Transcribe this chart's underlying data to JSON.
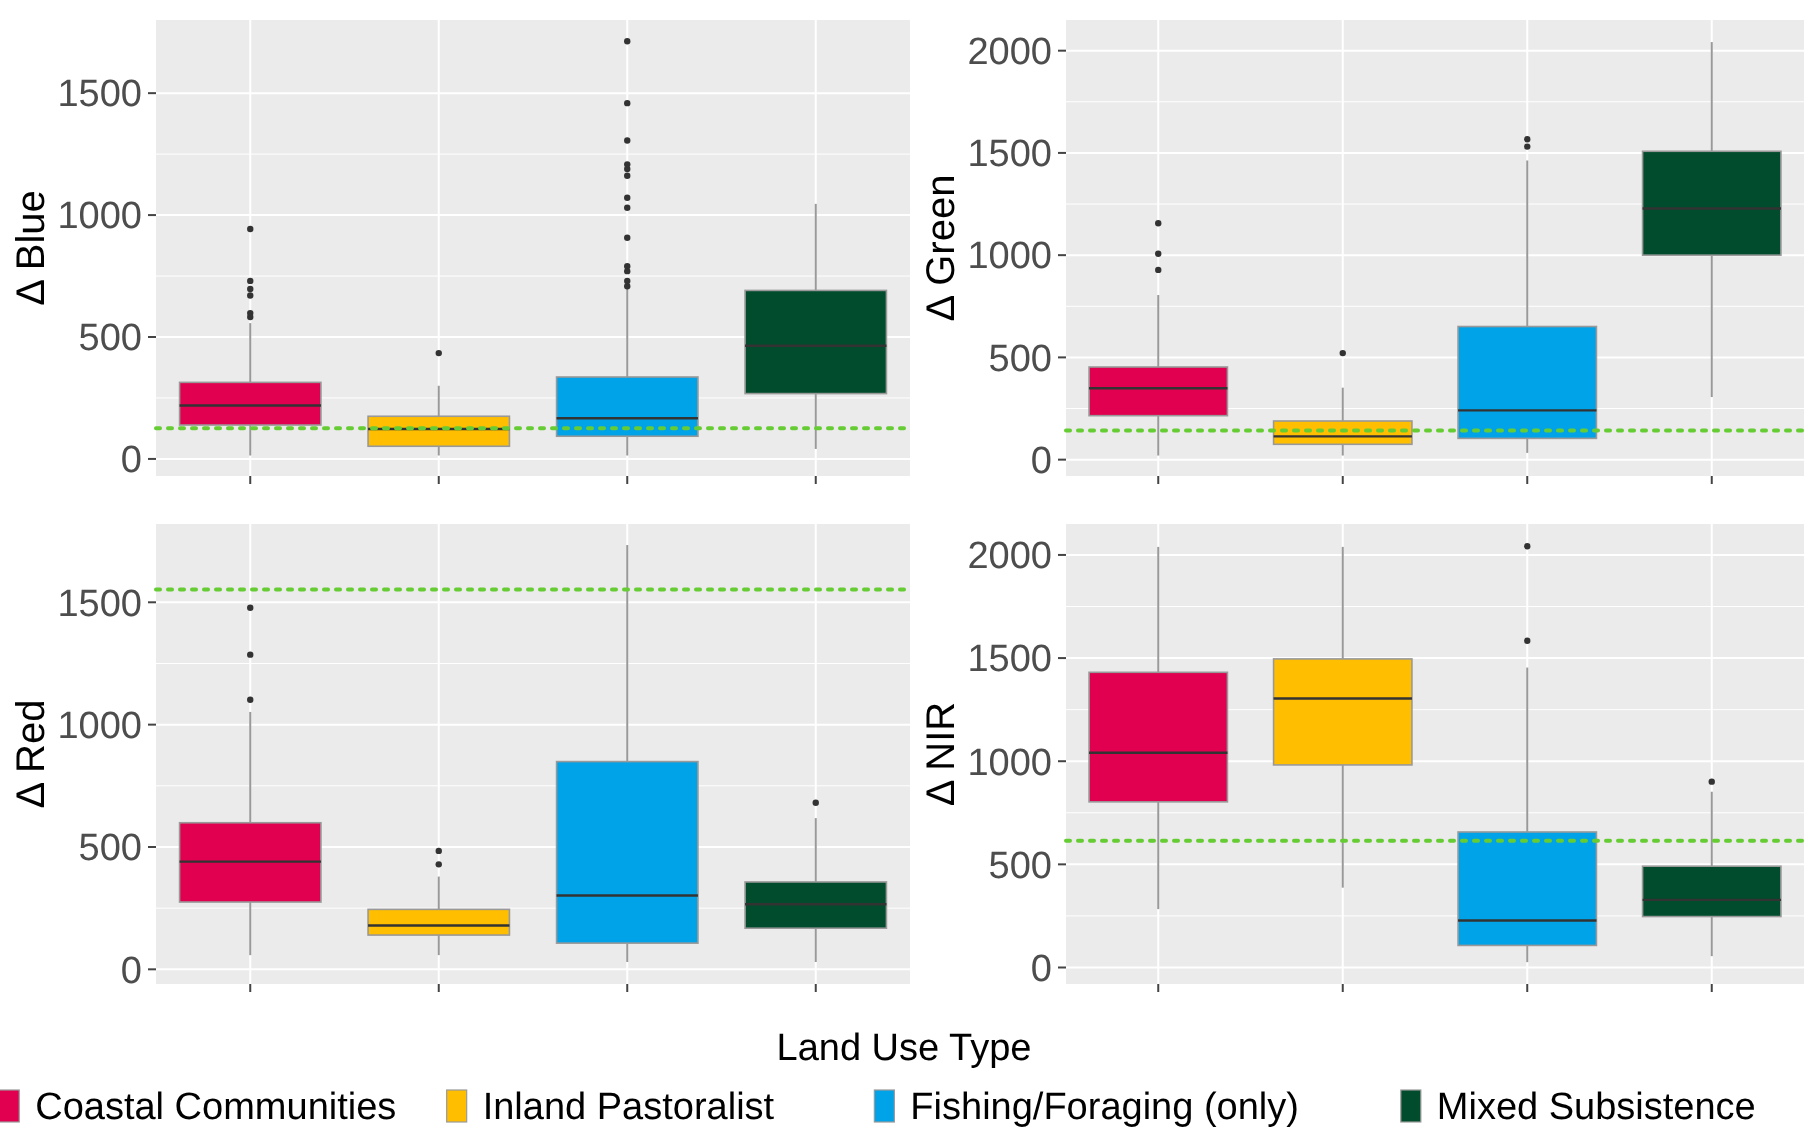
{
  "chart_data": [
    {
      "type": "box",
      "ylabel": "Δ Blue",
      "categories": [
        null,
        null,
        null,
        null
      ],
      "ylim": [
        -70,
        1800
      ],
      "yticks": [
        0,
        500,
        1000,
        1500
      ],
      "grid": true,
      "tick_labels": "y",
      "ref_lines": [
        {
          "axis": "y",
          "value": 126,
          "color": "#66cc33",
          "line_style": "dotted"
        }
      ],
      "series": [
        {
          "color": "#e0004f",
          "boxes": [
            {
              "low": 14,
              "q1": 139,
              "median": 219,
              "q3": 314,
              "high": 557,
              "outliers": [
                943,
                730,
                697,
                670,
                598,
                582
              ]
            },
            null,
            null,
            null
          ]
        },
        {
          "color": "#ffbe00",
          "boxes": [
            null,
            {
              "low": 14,
              "q1": 52,
              "median": 123,
              "q3": 175,
              "high": 300,
              "outliers": [
                434
              ]
            },
            null,
            null
          ]
        },
        {
          "color": "#00a2e8",
          "boxes": [
            null,
            null,
            {
              "low": 14,
              "q1": 93,
              "median": 167,
              "q3": 336,
              "high": 697,
              "outliers": [
                1713,
                1459,
                1306,
                1208,
                1189,
                1161,
                1071,
                1030,
                907,
                790,
                770,
                730,
                708
              ]
            },
            null
          ]
        },
        {
          "color": "#004c2c",
          "boxes": [
            null,
            null,
            null,
            {
              "low": 41,
              "q1": 268,
              "median": 464,
              "q3": 691,
              "high": 1046
            }
          ]
        }
      ]
    },
    {
      "type": "box",
      "ylabel": "Δ Green",
      "categories": [
        null,
        null,
        null,
        null
      ],
      "ylim": [
        -80,
        2150
      ],
      "yticks": [
        0,
        500,
        1000,
        1500,
        2000
      ],
      "grid": true,
      "tick_labels": "y",
      "ref_lines": [
        {
          "axis": "y",
          "value": 143,
          "color": "#66cc33",
          "line_style": "dotted"
        }
      ],
      "series": [
        {
          "color": "#e0004f",
          "boxes": [
            {
              "low": 20,
              "q1": 215,
              "median": 349,
              "q3": 453,
              "high": 805,
              "outliers": [
                1156,
                1007,
                928
              ]
            },
            null,
            null,
            null
          ]
        },
        {
          "color": "#ffbe00",
          "boxes": [
            null,
            {
              "low": 20,
              "q1": 75,
              "median": 114,
              "q3": 189,
              "high": 352,
              "outliers": [
                521
              ]
            },
            null,
            null
          ]
        },
        {
          "color": "#00a2e8",
          "boxes": [
            null,
            null,
            {
              "low": 33,
              "q1": 104,
              "median": 241,
              "q3": 651,
              "high": 1463,
              "outliers": [
                1567,
                1531
              ]
            },
            null
          ]
        },
        {
          "color": "#004c2c",
          "boxes": [
            null,
            null,
            null,
            {
              "low": 306,
              "q1": 1000,
              "median": 1228,
              "q3": 1508,
              "high": 2042
            }
          ]
        }
      ]
    },
    {
      "type": "box",
      "ylabel": "Δ Red",
      "xlabel": "Land Use Type",
      "legend": "bottom",
      "categories": [
        null,
        null,
        null,
        null
      ],
      "ylim": [
        -60,
        1820
      ],
      "yticks": [
        0,
        500,
        1000,
        1500
      ],
      "grid": true,
      "tick_labels": "y",
      "ref_lines": [
        {
          "axis": "y",
          "value": 1552,
          "color": "#66cc33",
          "line_style": "dotted"
        }
      ],
      "series": [
        {
          "name": "Coastal Communities",
          "color": "#e0004f",
          "boxes": [
            {
              "low": 58,
              "q1": 275,
              "median": 440,
              "q3": 599,
              "high": 1052,
              "outliers": [
                1102,
                1286,
                1478
              ]
            },
            null,
            null,
            null
          ]
        },
        {
          "name": "Inland Pastoralist",
          "color": "#ffbe00",
          "boxes": [
            null,
            {
              "low": 58,
              "q1": 140,
              "median": 179,
              "q3": 245,
              "high": 379,
              "outliers": [
                484,
                429
              ]
            },
            null,
            null
          ]
        },
        {
          "name": "Fishing/Foraging (only)",
          "color": "#00a2e8",
          "boxes": [
            null,
            null,
            {
              "low": 30,
              "q1": 107,
              "median": 302,
              "q3": 849,
              "high": 1734
            },
            null
          ]
        },
        {
          "name": "Mixed Subsistence",
          "color": "#004c2c",
          "boxes": [
            null,
            null,
            null,
            {
              "low": 30,
              "q1": 168,
              "median": 266,
              "q3": 357,
              "high": 618,
              "outliers": [
                681
              ]
            }
          ]
        }
      ]
    },
    {
      "type": "box",
      "ylabel": "Δ NIR",
      "categories": [
        null,
        null,
        null,
        null
      ],
      "ylim": [
        -80,
        2150
      ],
      "yticks": [
        0,
        500,
        1000,
        1500,
        2000
      ],
      "grid": true,
      "tick_labels": "y",
      "ref_lines": [
        {
          "axis": "y",
          "value": 615,
          "color": "#66cc33",
          "line_style": "dotted"
        }
      ],
      "series": [
        {
          "color": "#e0004f",
          "boxes": [
            {
              "low": 283,
              "q1": 803,
              "median": 1041,
              "q3": 1431,
              "high": 2039
            },
            null,
            null,
            null
          ]
        },
        {
          "color": "#ffbe00",
          "boxes": [
            null,
            {
              "low": 387,
              "q1": 982,
              "median": 1304,
              "q3": 1496,
              "high": 2039
            },
            null,
            null
          ]
        },
        {
          "color": "#00a2e8",
          "boxes": [
            null,
            null,
            {
              "low": 26,
              "q1": 107,
              "median": 228,
              "q3": 657,
              "high": 1454,
              "outliers": [
                2042,
                1584
              ]
            },
            null
          ]
        },
        {
          "color": "#004c2c",
          "boxes": [
            null,
            null,
            null,
            {
              "low": 55,
              "q1": 247,
              "median": 328,
              "q3": 491,
              "high": 852,
              "outliers": [
                901
              ]
            }
          ]
        }
      ]
    }
  ]
}
